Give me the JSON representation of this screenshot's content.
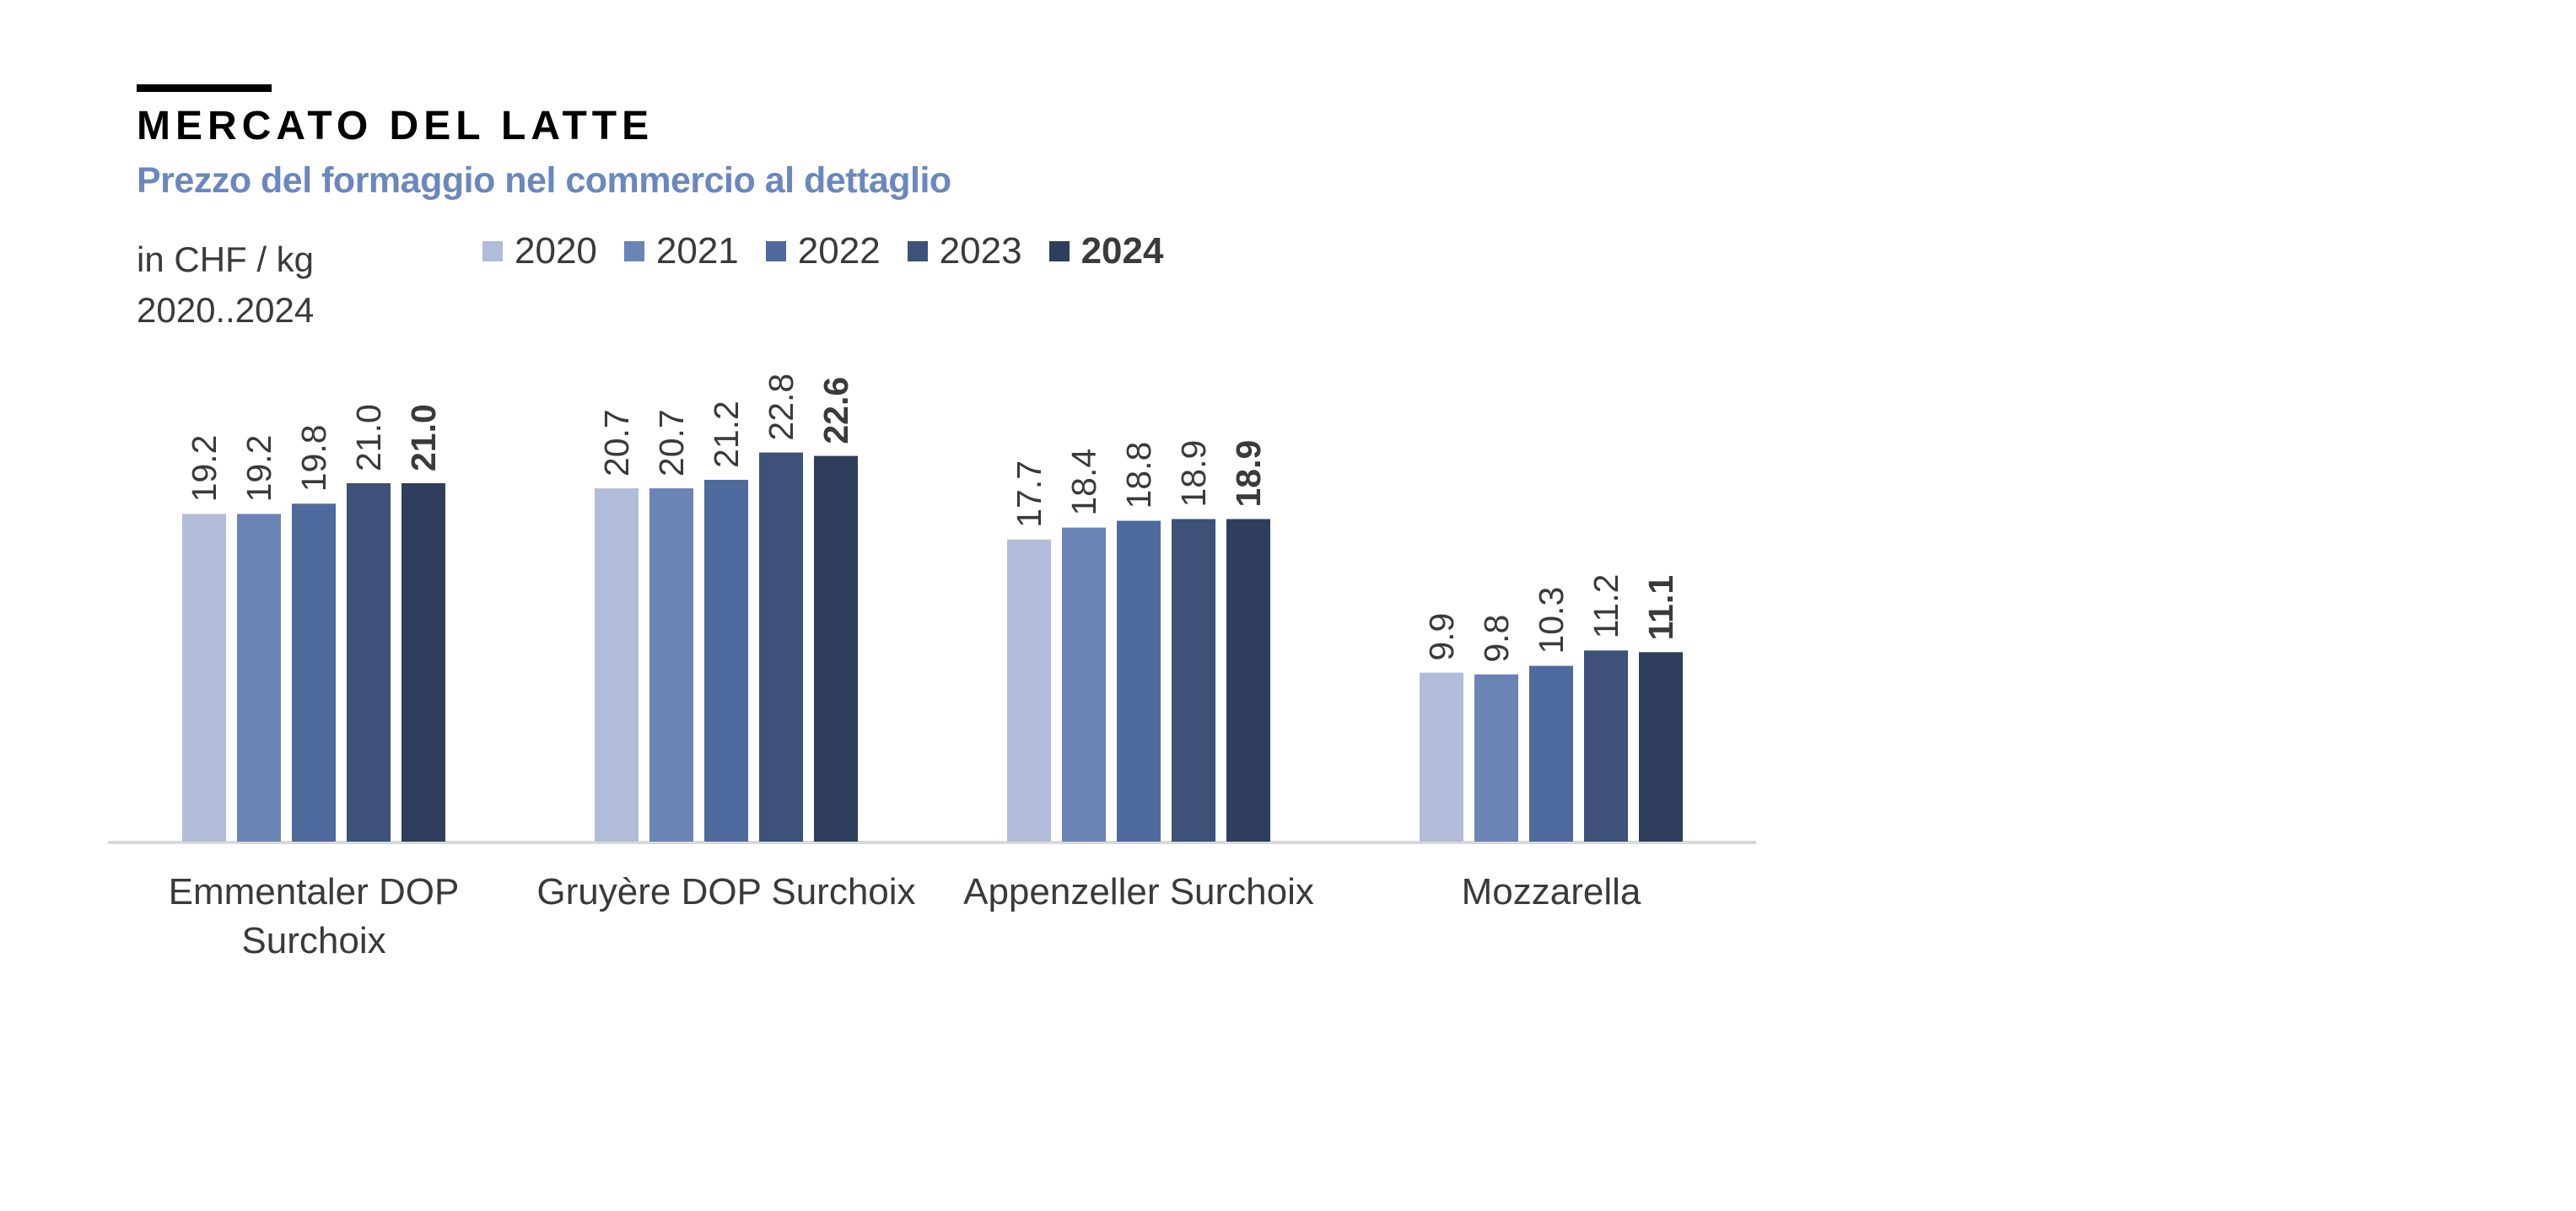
{
  "header": {
    "title": "MERCATO DEL LATTE",
    "subtitle": "Prezzo del formaggio nel commercio al dettaglio",
    "unit_line1": "in CHF / kg",
    "unit_line2": "2020..2024"
  },
  "colors": {
    "accent": "#000000",
    "subtitle": "#6b87bf",
    "axis": "#d9d9d9",
    "text": "#3a3a3a"
  },
  "chart_data": {
    "type": "bar",
    "categories": [
      "Emmentaler DOP Surchoix",
      "Gruyère DOP Surchoix",
      "Appenzeller Surchoix",
      "Mozzarella"
    ],
    "category_lines": [
      [
        "Emmentaler DOP",
        "Surchoix"
      ],
      [
        "Gruyère DOP Surchoix"
      ],
      [
        "Appenzeller Surchoix"
      ],
      [
        "Mozzarella"
      ]
    ],
    "series": [
      {
        "name": "2020",
        "color": "#b0bcd8",
        "bold": false,
        "values": [
          19.2,
          20.7,
          17.7,
          9.9
        ]
      },
      {
        "name": "2021",
        "color": "#6b84b6",
        "bold": false,
        "values": [
          19.2,
          20.7,
          18.4,
          9.8
        ]
      },
      {
        "name": "2022",
        "color": "#4f6a9c",
        "bold": false,
        "values": [
          19.8,
          21.2,
          18.8,
          10.3
        ]
      },
      {
        "name": "2023",
        "color": "#3d5179",
        "bold": false,
        "values": [
          21.0,
          22.8,
          18.9,
          11.2
        ]
      },
      {
        "name": "2024",
        "color": "#2e3e5c",
        "bold": true,
        "values": [
          21.0,
          22.6,
          18.9,
          11.1
        ]
      }
    ],
    "ylim": [
      0,
      29.5
    ],
    "xlabel": "",
    "ylabel": "",
    "grid": false,
    "legend_position": "top"
  }
}
